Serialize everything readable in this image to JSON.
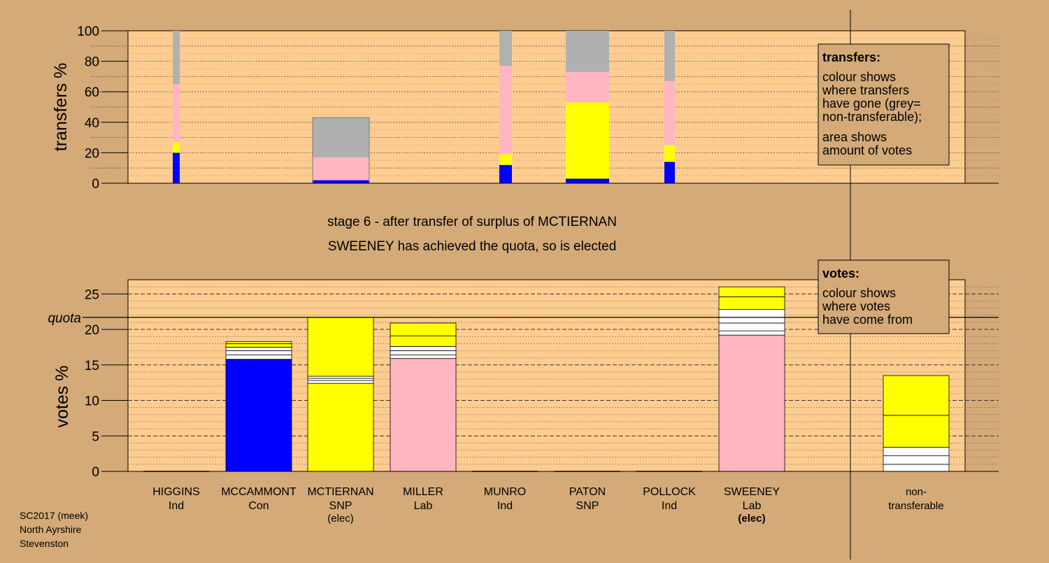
{
  "colors": {
    "background": "#d4aa78",
    "plot_area": "#ffcc90",
    "Con": "#0000ff",
    "SNP": "#ffff00",
    "Lab": "#ffb6c1",
    "Ind": "#ffffff",
    "non_transferable": "#b0b0b0"
  },
  "stage_title": "stage 6 - after transfer of surplus of MCTIERNAN",
  "stage_note": "SWEENEY has achieved the quota, so is elected",
  "footer": [
    "SC2017 (meek)",
    "North Ayrshire",
    "Stevenston"
  ],
  "transfers_legend": {
    "title": "transfers:",
    "lines1": [
      "colour shows",
      "where transfers",
      "have gone (grey=",
      "non-transferable);"
    ],
    "lines2": [
      "area shows",
      "amount of votes"
    ]
  },
  "votes_legend": {
    "title": "votes:",
    "lines": [
      "colour shows",
      "where votes",
      "have come from"
    ]
  },
  "chart_data": [
    {
      "type": "bar",
      "name": "transfers",
      "ylabel": "transfers %",
      "ylim": [
        0,
        100
      ],
      "yticks": [
        0,
        20,
        40,
        60,
        80,
        100
      ],
      "grid": true,
      "bars": [
        {
          "candidate": "HIGGINS",
          "segments": [
            {
              "party": "Con",
              "value": 20
            },
            {
              "party": "SNP",
              "value": 7
            },
            {
              "party": "Lab",
              "value": 38
            },
            {
              "party": "non_transferable",
              "value": 35
            }
          ]
        },
        {
          "candidate": "MCTIERNAN",
          "segments": [
            {
              "party": "Con",
              "value": 2
            },
            {
              "party": "SNP",
              "value": 0
            },
            {
              "party": "Lab",
              "value": 15
            },
            {
              "party": "non_transferable",
              "value": 26
            }
          ]
        },
        {
          "candidate": "MUNRO",
          "segments": [
            {
              "party": "Con",
              "value": 12
            },
            {
              "party": "SNP",
              "value": 7
            },
            {
              "party": "Lab",
              "value": 58
            },
            {
              "party": "non_transferable",
              "value": 23
            }
          ]
        },
        {
          "candidate": "PATON",
          "segments": [
            {
              "party": "Con",
              "value": 3
            },
            {
              "party": "SNP",
              "value": 50
            },
            {
              "party": "Lab",
              "value": 20
            },
            {
              "party": "non_transferable",
              "value": 27
            }
          ]
        },
        {
          "candidate": "POLLOCK",
          "segments": [
            {
              "party": "Con",
              "value": 14
            },
            {
              "party": "SNP",
              "value": 11
            },
            {
              "party": "Lab",
              "value": 42
            },
            {
              "party": "non_transferable",
              "value": 33
            }
          ]
        }
      ]
    },
    {
      "type": "bar",
      "name": "votes",
      "ylabel": "votes %",
      "ylim": [
        0,
        27
      ],
      "yticks": [
        0,
        5,
        10,
        15,
        20,
        25
      ],
      "quota": 21.7,
      "quota_label": "quota",
      "grid": true,
      "candidates": [
        {
          "name": "HIGGINS",
          "party": "Ind",
          "elected": "",
          "segments": []
        },
        {
          "name": "MCCAMMONT",
          "party": "Con",
          "elected": "",
          "segments": [
            {
              "color": "Con",
              "value": 15.8
            },
            {
              "color": "Ind",
              "value": 0.6
            },
            {
              "color": "Ind",
              "value": 0.6
            },
            {
              "color": "Ind",
              "value": 0.5
            },
            {
              "color": "SNP",
              "value": 0.5
            },
            {
              "color": "SNP",
              "value": 0.3
            }
          ]
        },
        {
          "name": "MCTIERNAN",
          "party": "SNP",
          "elected": "(elec)",
          "segments": [
            {
              "color": "SNP",
              "value": 12.4
            },
            {
              "color": "Ind",
              "value": 0.4
            },
            {
              "color": "Ind",
              "value": 0.3
            },
            {
              "color": "Ind",
              "value": 0.3
            },
            {
              "color": "SNP",
              "value": 8.3
            }
          ]
        },
        {
          "name": "MILLER",
          "party": "Lab",
          "elected": "",
          "segments": [
            {
              "color": "Lab",
              "value": 15.9
            },
            {
              "color": "Ind",
              "value": 0.5
            },
            {
              "color": "Ind",
              "value": 0.6
            },
            {
              "color": "Ind",
              "value": 0.6
            },
            {
              "color": "SNP",
              "value": 1.5
            },
            {
              "color": "SNP",
              "value": 1.8
            }
          ]
        },
        {
          "name": "MUNRO",
          "party": "Ind",
          "elected": "",
          "segments": []
        },
        {
          "name": "PATON",
          "party": "SNP",
          "elected": "",
          "segments": []
        },
        {
          "name": "POLLOCK",
          "party": "Ind",
          "elected": "",
          "segments": []
        },
        {
          "name": "SWEENEY",
          "party": "Lab",
          "elected": "(elec)",
          "segments": [
            {
              "color": "Lab",
              "value": 19.2
            },
            {
              "color": "Ind",
              "value": 0.6
            },
            {
              "color": "Ind",
              "value": 1.1
            },
            {
              "color": "Ind",
              "value": 1.9
            },
            {
              "color": "SNP",
              "value": 1.8
            },
            {
              "color": "SNP",
              "value": 1.4
            }
          ]
        }
      ],
      "non_transferable": {
        "label": [
          "non-",
          "transferable"
        ],
        "segments": [
          {
            "color": "Ind",
            "value": 1.0
          },
          {
            "color": "Ind",
            "value": 1.2
          },
          {
            "color": "Ind",
            "value": 1.2
          },
          {
            "color": "SNP",
            "value": 4.5
          },
          {
            "color": "SNP",
            "value": 5.6
          }
        ]
      }
    }
  ]
}
